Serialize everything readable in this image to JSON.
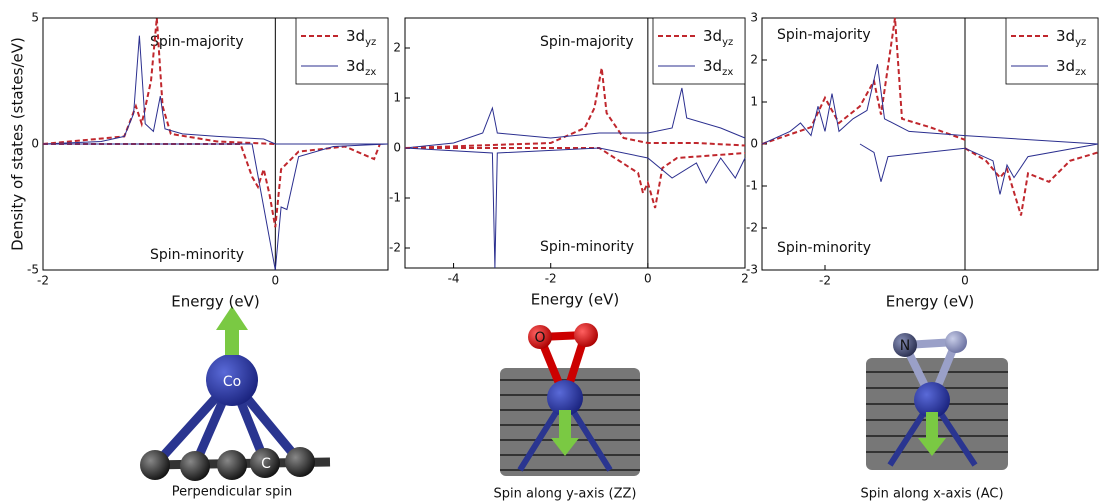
{
  "chart_data": [
    {
      "type": "line",
      "ylabel": "Density of states (states/eV)",
      "xlabel": "Energy (eV)",
      "annotations": [
        "Spin-majority",
        "Spin-minority"
      ],
      "legend": "top right",
      "vline": 0,
      "xlim": [
        -2,
        0.97
      ],
      "xticks": [
        -2,
        0
      ],
      "ylim": [
        -5,
        5
      ],
      "yticks": [
        -5,
        0,
        5
      ],
      "series": [
        {
          "name": "3d",
          "subscript": "yz",
          "color": "#c0272d",
          "line_style": "dashed",
          "x": [
            -2,
            -1.3,
            -1.2,
            -1.15,
            -1.07,
            -1.02,
            -0.97,
            -0.9,
            -0.5,
            0
          ],
          "values": [
            0,
            0.3,
            1.5,
            0.8,
            2.5,
            5,
            1.5,
            0.4,
            0.1,
            0
          ]
        },
        {
          "name": "3d",
          "subscript": "zx",
          "color": "#2b2f8f",
          "line_style": "solid",
          "x": [
            -2,
            -1.5,
            -1.3,
            -1.22,
            -1.17,
            -1.12,
            -1.05,
            -0.99,
            -0.95,
            -0.8,
            -0.5,
            -0.1,
            0,
            0.97
          ],
          "values": [
            0,
            0.1,
            0.3,
            1.2,
            4.3,
            0.8,
            0.5,
            1.9,
            0.6,
            0.4,
            0.3,
            0.2,
            0,
            0
          ]
        },
        {
          "color": "#c0272d",
          "line_style": "dashed",
          "x": [
            -2,
            -0.3,
            -0.2,
            -0.15,
            -0.1,
            -0.05,
            0,
            0.05,
            0.2,
            0.6,
            0.85,
            0.9
          ],
          "values": [
            0,
            0,
            -1.3,
            -1.7,
            -1,
            -2,
            -3.3,
            -1,
            -0.3,
            -0.1,
            -0.6,
            0
          ]
        },
        {
          "color": "#2b2f8f",
          "line_style": "solid",
          "x": [
            -2,
            -0.2,
            0,
            0.05,
            0.1,
            0.2,
            0.5,
            0.97
          ],
          "values": [
            0,
            0,
            -5,
            -2.5,
            -2.6,
            -0.5,
            -0.1,
            0
          ]
        }
      ]
    },
    {
      "type": "line",
      "xlabel": "Energy (eV)",
      "annotations": [
        "Spin-majority",
        "Spin-minority"
      ],
      "legend": "top right",
      "vline": 0,
      "xlim": [
        -5,
        2
      ],
      "xticks": [
        -4,
        -2,
        0,
        2
      ],
      "ylim": [
        -2.4,
        2.6
      ],
      "yticks": [
        -2,
        -1,
        0,
        1,
        2
      ],
      "series": [
        {
          "name": "3d",
          "subscript": "yz",
          "color": "#c0272d",
          "line_style": "dashed",
          "x": [
            -5,
            -2,
            -1.3,
            -1.1,
            -0.95,
            -0.85,
            -0.5,
            0,
            1,
            2
          ],
          "values": [
            0,
            0.1,
            0.4,
            0.8,
            1.6,
            0.7,
            0.2,
            0.1,
            0.1,
            0.05
          ]
        },
        {
          "name": "3d",
          "subscript": "zx",
          "color": "#2b2f8f",
          "line_style": "solid",
          "x": [
            -5,
            -4,
            -3.4,
            -3.2,
            -3.1,
            -2,
            -1,
            0,
            0.5,
            0.7,
            0.8,
            1.5,
            2
          ],
          "values": [
            0,
            0.1,
            0.3,
            0.8,
            0.3,
            0.2,
            0.3,
            0.3,
            0.4,
            1.2,
            0.6,
            0.4,
            0.2
          ]
        },
        {
          "color": "#c0272d",
          "line_style": "dashed",
          "x": [
            -5,
            -1,
            -0.2,
            -0.1,
            0,
            0.15,
            0.3,
            0.6,
            2
          ],
          "values": [
            0,
            0,
            -0.5,
            -0.9,
            -0.7,
            -1.2,
            -0.4,
            -0.2,
            -0.1
          ]
        },
        {
          "color": "#2b2f8f",
          "line_style": "solid",
          "x": [
            -5,
            -3.2,
            -3.15,
            -3.1,
            -1,
            0,
            0.5,
            1,
            1.2,
            1.5,
            1.8,
            2
          ],
          "values": [
            0,
            -0.1,
            -2.4,
            -0.1,
            0,
            -0.2,
            -0.6,
            -0.3,
            -0.7,
            -0.2,
            -0.6,
            -0.2
          ]
        }
      ]
    },
    {
      "type": "line",
      "xlabel": "Energy (eV)",
      "annotations": [
        "Spin-majority",
        "Spin-minority"
      ],
      "legend": "top right",
      "vline": 0,
      "xlim": [
        -2.9,
        1.9
      ],
      "xticks": [
        -2,
        0
      ],
      "ylim": [
        -3,
        3
      ],
      "yticks": [
        -3,
        -2,
        -1,
        0,
        1,
        2,
        3
      ],
      "series": [
        {
          "name": "3d",
          "subscript": "yz",
          "color": "#c0272d",
          "line_style": "dashed",
          "x": [
            -2.9,
            -2.2,
            -2,
            -1.8,
            -1.5,
            -1.3,
            -1.2,
            -1,
            -0.9,
            -0.5,
            0
          ],
          "values": [
            0,
            0.4,
            1.1,
            0.5,
            0.9,
            1.5,
            0.7,
            3,
            0.6,
            0.4,
            0.1
          ]
        },
        {
          "name": "3d",
          "subscript": "zx",
          "color": "#2b2f8f",
          "line_style": "solid",
          "x": [
            -2.9,
            -2.5,
            -2.35,
            -2.2,
            -2.1,
            -2,
            -1.9,
            -1.8,
            -1.6,
            -1.4,
            -1.25,
            -1.15,
            -0.8,
            0,
            1.9
          ],
          "values": [
            0,
            0.3,
            0.5,
            0.2,
            0.9,
            0.3,
            1.2,
            0.3,
            0.6,
            0.8,
            1.9,
            0.6,
            0.3,
            0.2,
            0
          ]
        },
        {
          "color": "#c0272d",
          "line_style": "dashed",
          "x": [
            0,
            0.3,
            0.5,
            0.6,
            0.8,
            0.9,
            1.2,
            1.5,
            1.9
          ],
          "values": [
            -0.1,
            -0.4,
            -0.8,
            -0.6,
            -1.7,
            -0.7,
            -0.9,
            -0.4,
            -0.2
          ]
        },
        {
          "color": "#2b2f8f",
          "line_style": "solid",
          "x": [
            -1.5,
            -1.3,
            -1.2,
            -1.1,
            0,
            0.4,
            0.5,
            0.6,
            0.7,
            0.9,
            1.9
          ],
          "values": [
            0,
            -0.2,
            -0.9,
            -0.3,
            -0.1,
            -0.4,
            -1.2,
            -0.5,
            -0.8,
            -0.3,
            0
          ]
        }
      ]
    }
  ],
  "illustrations": [
    {
      "caption": "Perpendicular spin",
      "atom_labels": [
        "Co",
        "C"
      ]
    },
    {
      "caption": "Spin along y-axis (ZZ)",
      "atom_labels": [
        "O"
      ]
    },
    {
      "caption": "Spin along x-axis (AC)",
      "atom_labels": [
        "N"
      ]
    }
  ]
}
